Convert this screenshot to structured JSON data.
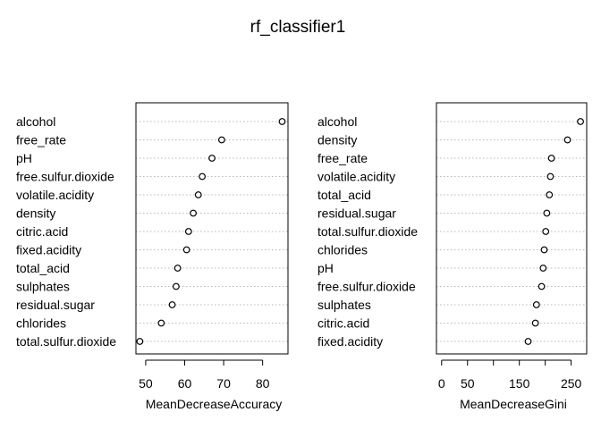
{
  "title": "rf_classifier1",
  "chart_data": [
    {
      "type": "scatter",
      "xlabel": "MeanDecreaseAccuracy",
      "xlim": [
        47.5,
        86.5
      ],
      "xticks": [
        50,
        60,
        70,
        80
      ],
      "points": [
        {
          "label": "alcohol",
          "value": 85.0
        },
        {
          "label": "free_rate",
          "value": 69.5
        },
        {
          "label": "pH",
          "value": 67.0
        },
        {
          "label": "free.sulfur.dioxide",
          "value": 64.5
        },
        {
          "label": "volatile.acidity",
          "value": 63.5
        },
        {
          "label": "density",
          "value": 62.2
        },
        {
          "label": "citric.acid",
          "value": 61.0
        },
        {
          "label": "fixed.acidity",
          "value": 60.5
        },
        {
          "label": "total_acid",
          "value": 58.2
        },
        {
          "label": "sulphates",
          "value": 57.8
        },
        {
          "label": "residual.sugar",
          "value": 56.8
        },
        {
          "label": "chlorides",
          "value": 54.0
        },
        {
          "label": "total.sulfur.dioxide",
          "value": 48.5
        }
      ]
    },
    {
      "type": "scatter",
      "xlabel": "MeanDecreaseGini",
      "xlim": [
        -10,
        280
      ],
      "xticks": [
        0,
        50,
        100,
        150,
        200,
        250
      ],
      "xticklabels": [
        "0",
        "50",
        "",
        "150",
        "",
        "250"
      ],
      "points": [
        {
          "label": "alcohol",
          "value": 268
        },
        {
          "label": "density",
          "value": 243
        },
        {
          "label": "free_rate",
          "value": 212
        },
        {
          "label": "volatile.acidity",
          "value": 210
        },
        {
          "label": "total_acid",
          "value": 208
        },
        {
          "label": "residual.sugar",
          "value": 203
        },
        {
          "label": "total.sulfur.dioxide",
          "value": 201
        },
        {
          "label": "chlorides",
          "value": 198
        },
        {
          "label": "pH",
          "value": 196
        },
        {
          "label": "free.sulfur.dioxide",
          "value": 193
        },
        {
          "label": "sulphates",
          "value": 183
        },
        {
          "label": "citric.acid",
          "value": 181
        },
        {
          "label": "fixed.acidity",
          "value": 167
        }
      ]
    }
  ]
}
